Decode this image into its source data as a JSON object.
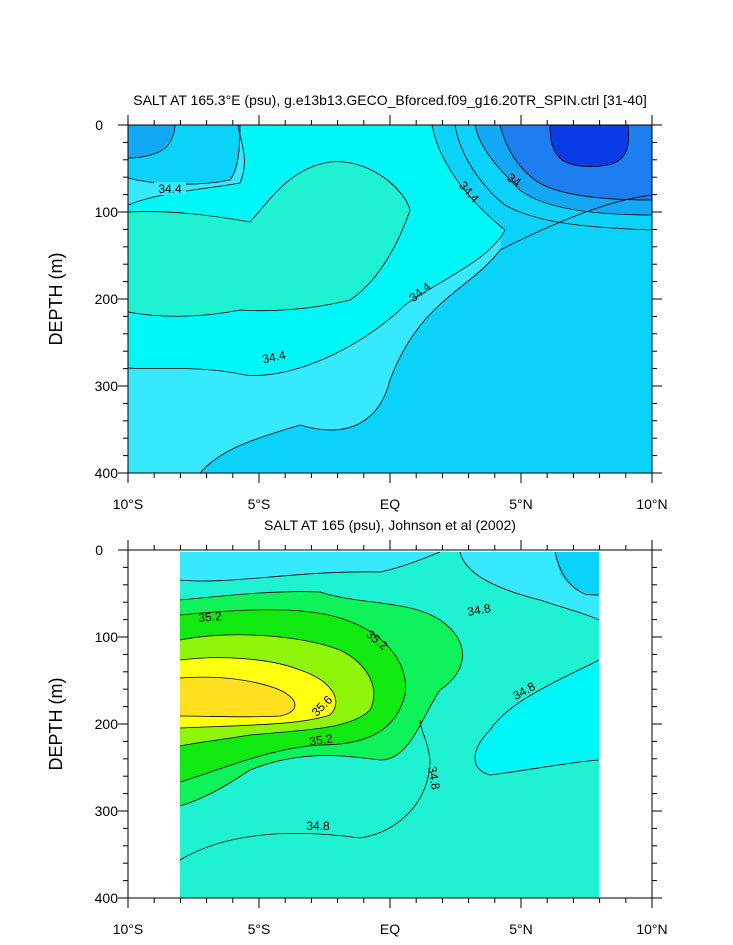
{
  "chart_data": [
    {
      "type": "heatmap",
      "title": "SALT AT 165.3°E (psu), g.e13b13.GECO_Bforced.f09_g16.20TR_SPIN.ctrl [31-40]",
      "ylabel": "DEPTH (m)",
      "xlabel": "",
      "x_ticks": [
        "10°S",
        "5°S",
        "EQ",
        "5°N",
        "10°N"
      ],
      "y_ticks": [
        "0",
        "100",
        "200",
        "300",
        "400"
      ],
      "xlim": [
        -10,
        10
      ],
      "ylim": [
        400,
        0
      ],
      "contour_labels": [
        "34.4",
        "34.4",
        "34",
        "34.4",
        "34.4"
      ],
      "colors": {
        "deep_blue": "#0a3ce6",
        "blue": "#1e7ef0",
        "mid_blue": "#12a8f4",
        "light_blue": "#0ad2f8",
        "cyan": "#37e9ff",
        "bright_cyan": "#00f7f7",
        "aqua_green": "#1ff2d2"
      }
    },
    {
      "type": "heatmap",
      "title": "SALT AT 165 (psu), Johnson et al (2002)",
      "ylabel": "DEPTH (m)",
      "xlabel": "",
      "x_ticks": [
        "10°S",
        "5°S",
        "EQ",
        "5°N",
        "10°N"
      ],
      "y_ticks": [
        "0",
        "100",
        "200",
        "300",
        "400"
      ],
      "xlim": [
        -10,
        10
      ],
      "ylim": [
        400,
        0
      ],
      "contour_labels": [
        "35.2",
        "35.2",
        "34.8",
        "35.6",
        "34.8",
        "35.2",
        "34.8",
        "34.8"
      ],
      "colors": {
        "aqua_green": "#1ff2d2",
        "green": "#0ef25a",
        "bright_green": "#10ea10",
        "yellow_green": "#8ff50a",
        "yellow": "#ffff10",
        "orange_yellow": "#ffe020",
        "cyan": "#37e9ff",
        "bright_cyan": "#00f7f7",
        "light_blue": "#0ad2f8"
      }
    }
  ]
}
